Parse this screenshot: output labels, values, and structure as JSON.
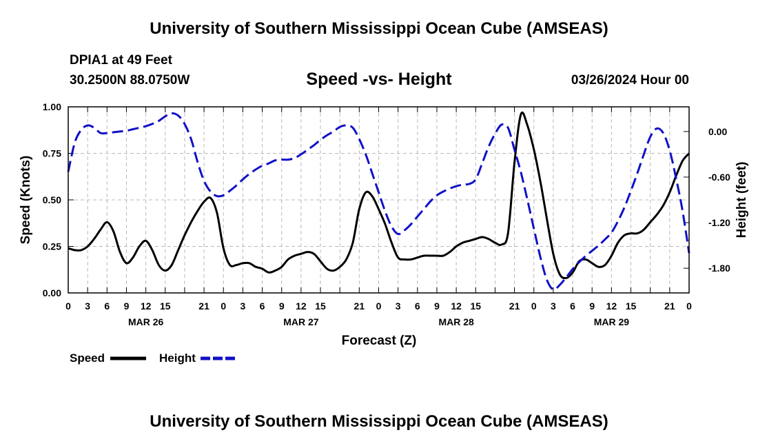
{
  "header": {
    "title_top": "University of Southern Mississippi Ocean Cube (AMSEAS)",
    "station": "DPIA1 at 49 Feet",
    "location": "30.2500N  88.0750W",
    "date_hour": "03/26/2024 Hour 00",
    "title_bottom": "University of Southern Mississippi Ocean Cube (AMSEAS)"
  },
  "colors": {
    "speed": "#000000",
    "height": "#1010c8",
    "grid": "#b8b8b8"
  },
  "chart_data": {
    "type": "line",
    "title": "Speed -vs- Height",
    "xlabel": "Forecast (Z)",
    "ylabel": "Speed (Knots)",
    "y2label": "Height (feet)",
    "x_range": [
      0,
      96
    ],
    "x_tick_hours": [
      0,
      3,
      6,
      9,
      12,
      15,
      18,
      21,
      24,
      27,
      30,
      33,
      36,
      39,
      42,
      45,
      48,
      51,
      54,
      57,
      60,
      63,
      66,
      69,
      72,
      75,
      78,
      81,
      84,
      87,
      90,
      93,
      96
    ],
    "x_tick_labels": [
      "0",
      "3",
      "6",
      "9",
      "12",
      "15",
      "",
      "21",
      "0",
      "3",
      "6",
      "9",
      "12",
      "15",
      "",
      "21",
      "0",
      "3",
      "6",
      "9",
      "12",
      "15",
      "",
      "21",
      "0",
      "3",
      "6",
      "9",
      "12",
      "15",
      "",
      "21",
      "0"
    ],
    "date_labels": [
      {
        "hour": 12,
        "label": "MAR 26"
      },
      {
        "hour": 36,
        "label": "MAR 27"
      },
      {
        "hour": 60,
        "label": "MAR 28"
      },
      {
        "hour": 84,
        "label": "MAR 29"
      }
    ],
    "ylim": [
      0,
      1
    ],
    "y_ticks": [
      0,
      0.25,
      0.5,
      0.75,
      1.0
    ],
    "y_tick_labels": [
      "0.00",
      "0.25",
      "0.50",
      "0.75",
      "1.00"
    ],
    "y2lim": [
      -2.125,
      0.325
    ],
    "y2_ticks": [
      0.0,
      -0.6,
      -1.2,
      -1.8
    ],
    "y2_tick_labels": [
      "0.00",
      "-0.60",
      "-1.20",
      "-1.80"
    ],
    "series": [
      {
        "name": "Speed",
        "axis": "left",
        "style": "solid",
        "x": [
          0,
          1,
          2,
          3,
          4,
          5,
          6,
          7,
          8,
          9,
          10,
          11,
          12,
          13,
          14,
          15,
          16,
          17,
          18,
          19,
          20,
          21,
          22,
          23,
          24,
          25,
          26,
          27,
          28,
          29,
          30,
          31,
          32,
          33,
          34,
          35,
          36,
          37,
          38,
          39,
          40,
          41,
          42,
          43,
          44,
          45,
          46,
          47,
          48,
          49,
          50,
          51,
          52,
          53,
          54,
          55,
          56,
          57,
          58,
          59,
          60,
          61,
          62,
          63,
          64,
          65,
          66,
          67,
          68,
          69,
          70,
          71,
          72,
          73,
          74,
          75,
          76,
          77,
          78,
          79,
          80,
          81,
          82,
          83,
          84,
          85,
          86,
          87,
          88,
          89,
          90,
          91,
          92,
          93,
          94,
          95,
          96
        ],
        "values": [
          0.24,
          0.23,
          0.23,
          0.25,
          0.29,
          0.34,
          0.38,
          0.33,
          0.22,
          0.16,
          0.19,
          0.25,
          0.28,
          0.23,
          0.15,
          0.12,
          0.15,
          0.23,
          0.31,
          0.38,
          0.44,
          0.49,
          0.51,
          0.43,
          0.24,
          0.15,
          0.15,
          0.16,
          0.16,
          0.14,
          0.13,
          0.11,
          0.12,
          0.14,
          0.18,
          0.2,
          0.21,
          0.22,
          0.21,
          0.17,
          0.13,
          0.12,
          0.14,
          0.18,
          0.27,
          0.45,
          0.54,
          0.52,
          0.45,
          0.37,
          0.27,
          0.19,
          0.18,
          0.18,
          0.19,
          0.2,
          0.2,
          0.2,
          0.2,
          0.22,
          0.25,
          0.27,
          0.28,
          0.29,
          0.3,
          0.29,
          0.27,
          0.26,
          0.32,
          0.7,
          0.96,
          0.9,
          0.77,
          0.6,
          0.4,
          0.21,
          0.1,
          0.08,
          0.11,
          0.17,
          0.18,
          0.16,
          0.14,
          0.15,
          0.2,
          0.27,
          0.31,
          0.32,
          0.32,
          0.34,
          0.38,
          0.42,
          0.47,
          0.54,
          0.63,
          0.71,
          0.75
        ]
      },
      {
        "name": "Height",
        "axis": "right",
        "style": "dashed",
        "x": [
          0,
          1,
          2,
          3,
          4,
          5,
          6,
          7,
          8,
          9,
          10,
          11,
          12,
          13,
          14,
          15,
          16,
          17,
          18,
          19,
          20,
          21,
          22,
          23,
          24,
          25,
          26,
          27,
          28,
          29,
          30,
          31,
          32,
          33,
          34,
          35,
          36,
          37,
          38,
          39,
          40,
          41,
          42,
          43,
          44,
          45,
          46,
          47,
          48,
          49,
          50,
          51,
          52,
          53,
          54,
          55,
          56,
          57,
          58,
          59,
          60,
          61,
          62,
          63,
          64,
          65,
          66,
          67,
          68,
          69,
          70,
          71,
          72,
          73,
          74,
          75,
          76,
          77,
          78,
          79,
          80,
          81,
          82,
          83,
          84,
          85,
          86,
          87,
          88,
          89,
          90,
          91,
          92,
          93,
          94,
          95,
          96
        ],
        "values": [
          -0.53,
          -0.15,
          0.02,
          0.08,
          0.05,
          -0.02,
          -0.02,
          -0.01,
          0.0,
          0.01,
          0.03,
          0.05,
          0.07,
          0.1,
          0.14,
          0.2,
          0.24,
          0.21,
          0.1,
          -0.1,
          -0.4,
          -0.65,
          -0.79,
          -0.85,
          -0.84,
          -0.78,
          -0.71,
          -0.63,
          -0.56,
          -0.5,
          -0.45,
          -0.42,
          -0.38,
          -0.37,
          -0.37,
          -0.35,
          -0.3,
          -0.24,
          -0.18,
          -0.11,
          -0.05,
          0.0,
          0.06,
          0.08,
          0.05,
          -0.1,
          -0.3,
          -0.55,
          -0.8,
          -1.05,
          -1.25,
          -1.35,
          -1.3,
          -1.22,
          -1.12,
          -1.02,
          -0.92,
          -0.84,
          -0.79,
          -0.75,
          -0.72,
          -0.7,
          -0.69,
          -0.63,
          -0.42,
          -0.2,
          -0.03,
          0.09,
          0.05,
          -0.24,
          -0.54,
          -0.9,
          -1.28,
          -1.65,
          -1.95,
          -2.08,
          -2.02,
          -1.92,
          -1.81,
          -1.72,
          -1.64,
          -1.57,
          -1.5,
          -1.42,
          -1.33,
          -1.18,
          -1.0,
          -0.78,
          -0.55,
          -0.3,
          -0.07,
          0.04,
          -0.02,
          -0.25,
          -0.62,
          -1.05,
          -1.6
        ]
      }
    ],
    "legend": [
      {
        "label": "Speed",
        "style": "solid"
      },
      {
        "label": "Height",
        "style": "dashed"
      }
    ]
  }
}
